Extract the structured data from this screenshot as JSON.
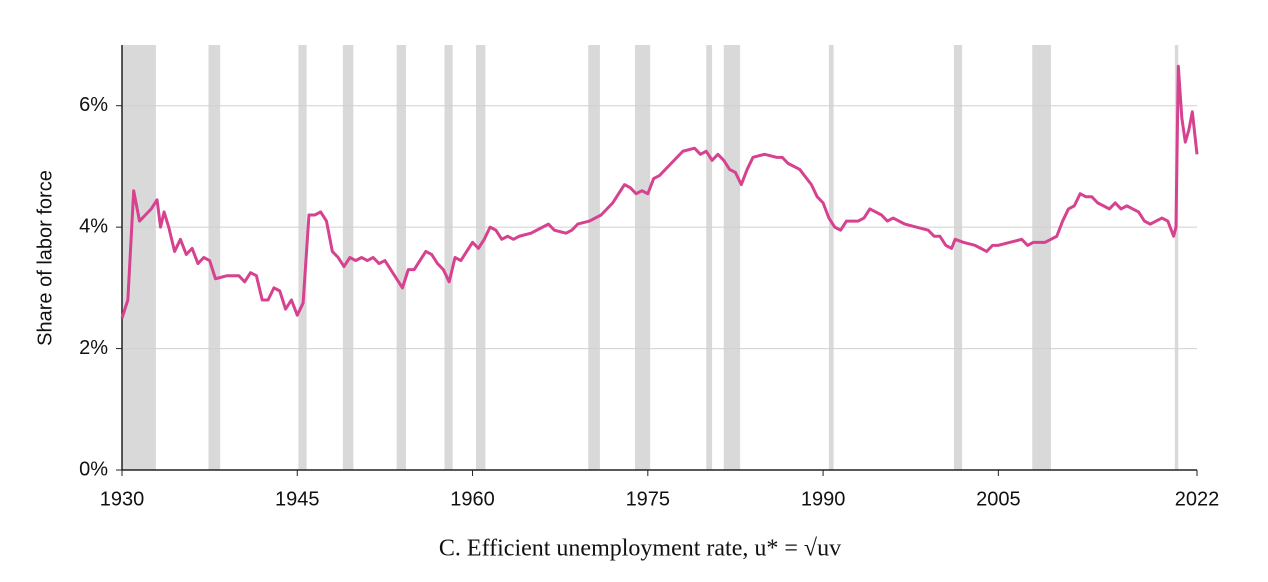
{
  "chart_data": {
    "type": "line",
    "caption": "C. Efficient unemployment rate, u* = √uv",
    "ylabel": "Share of labor force",
    "color": "#d6428f",
    "recession_color": "#d9d9d9",
    "grid": true,
    "xlim": [
      1930,
      2022
    ],
    "xticks": [
      1930,
      1945,
      1960,
      1975,
      1990,
      2005,
      2022
    ],
    "ylim": [
      0,
      7
    ],
    "yticks": [
      {
        "value": 0,
        "label": "0%"
      },
      {
        "value": 2,
        "label": "2%"
      },
      {
        "value": 4,
        "label": "4%"
      },
      {
        "value": 6,
        "label": "6%"
      }
    ],
    "recessions": [
      [
        1930,
        1932.9
      ],
      [
        1937.4,
        1938.4
      ],
      [
        1945.1,
        1945.8
      ],
      [
        1948.9,
        1949.8
      ],
      [
        1953.5,
        1954.3
      ],
      [
        1957.6,
        1958.3
      ],
      [
        1960.3,
        1961.1
      ],
      [
        1969.9,
        1970.9
      ],
      [
        1973.9,
        1975.2
      ],
      [
        1980.0,
        1980.5
      ],
      [
        1981.5,
        1982.9
      ],
      [
        1990.5,
        1990.9
      ],
      [
        2001.2,
        2001.9
      ],
      [
        2007.9,
        2009.5
      ],
      [
        2020.1,
        2020.4
      ]
    ],
    "x": [
      1930,
      1930.5,
      1931,
      1931.5,
      1932,
      1932.5,
      1933,
      1933.3,
      1933.6,
      1934,
      1934.5,
      1935,
      1935.5,
      1936,
      1936.5,
      1937,
      1937.5,
      1938,
      1939,
      1940,
      1940.5,
      1941,
      1941.5,
      1942,
      1942.5,
      1943,
      1943.5,
      1944,
      1944.5,
      1945,
      1945.5,
      1946,
      1946.5,
      1947,
      1947.5,
      1948,
      1948.5,
      1949,
      1949.5,
      1950,
      1950.5,
      1951,
      1951.5,
      1952,
      1952.5,
      1953,
      1953.5,
      1954,
      1954.5,
      1955,
      1955.5,
      1956,
      1956.5,
      1957,
      1957.5,
      1958,
      1958.5,
      1959,
      1959.5,
      1960,
      1960.5,
      1961,
      1961.5,
      1962,
      1962.5,
      1963,
      1963.5,
      1964,
      1965,
      1966,
      1966.5,
      1967,
      1968,
      1968.5,
      1969,
      1970,
      1971,
      1972,
      1973,
      1973.5,
      1974,
      1974.5,
      1975,
      1975.5,
      1976,
      1977,
      1978,
      1979,
      1979.5,
      1980,
      1980.5,
      1981,
      1981.5,
      1982,
      1982.5,
      1983,
      1983.5,
      1984,
      1985,
      1986,
      1986.5,
      1987,
      1988,
      1989,
      1989.5,
      1990,
      1990.5,
      1991,
      1991.5,
      1992,
      1993,
      1993.5,
      1994,
      1994.5,
      1995,
      1995.5,
      1996,
      1997,
      1998,
      1999,
      1999.5,
      2000,
      2000.5,
      2001,
      2001.3,
      2002,
      2003,
      2003.5,
      2004,
      2004.5,
      2005,
      2006,
      2007,
      2007.5,
      2008,
      2009,
      2009.5,
      2010,
      2010.5,
      2011,
      2011.5,
      2012,
      2012.5,
      2013,
      2013.5,
      2014,
      2014.5,
      2015,
      2015.5,
      2016,
      2016.5,
      2017,
      2017.5,
      2018,
      2018.5,
      2019,
      2019.5,
      2020,
      2020.2,
      2020.4,
      2020.7,
      2021,
      2021.3,
      2021.6,
      2022
    ],
    "values": [
      2.5,
      2.8,
      4.6,
      4.1,
      4.2,
      4.3,
      4.45,
      4.0,
      4.25,
      4.0,
      3.6,
      3.8,
      3.55,
      3.65,
      3.4,
      3.5,
      3.45,
      3.15,
      3.2,
      3.2,
      3.1,
      3.25,
      3.2,
      2.8,
      2.8,
      3.0,
      2.95,
      2.65,
      2.8,
      2.55,
      2.75,
      4.2,
      4.2,
      4.25,
      4.1,
      3.6,
      3.5,
      3.35,
      3.5,
      3.45,
      3.5,
      3.45,
      3.5,
      3.4,
      3.45,
      3.3,
      3.15,
      3.0,
      3.3,
      3.3,
      3.45,
      3.6,
      3.55,
      3.4,
      3.3,
      3.1,
      3.5,
      3.45,
      3.6,
      3.75,
      3.65,
      3.8,
      4.0,
      3.95,
      3.8,
      3.85,
      3.8,
      3.85,
      3.9,
      4.0,
      4.05,
      3.95,
      3.9,
      3.95,
      4.05,
      4.1,
      4.2,
      4.4,
      4.7,
      4.65,
      4.55,
      4.6,
      4.55,
      4.8,
      4.85,
      5.05,
      5.25,
      5.3,
      5.2,
      5.25,
      5.1,
      5.2,
      5.1,
      4.95,
      4.9,
      4.7,
      4.95,
      5.15,
      5.2,
      5.15,
      5.15,
      5.05,
      4.95,
      4.7,
      4.5,
      4.4,
      4.15,
      4.0,
      3.95,
      4.1,
      4.1,
      4.15,
      4.3,
      4.25,
      4.2,
      4.1,
      4.15,
      4.05,
      4.0,
      3.95,
      3.85,
      3.85,
      3.7,
      3.65,
      3.8,
      3.75,
      3.7,
      3.65,
      3.6,
      3.7,
      3.7,
      3.75,
      3.8,
      3.7,
      3.75,
      3.75,
      3.8,
      3.85,
      4.1,
      4.3,
      4.35,
      4.55,
      4.5,
      4.5,
      4.4,
      4.35,
      4.3,
      4.4,
      4.3,
      4.35,
      4.3,
      4.25,
      4.1,
      4.05,
      4.1,
      4.15,
      4.1,
      3.85,
      4.0,
      6.65,
      5.8,
      5.4,
      5.6,
      5.9,
      5.2
    ]
  }
}
